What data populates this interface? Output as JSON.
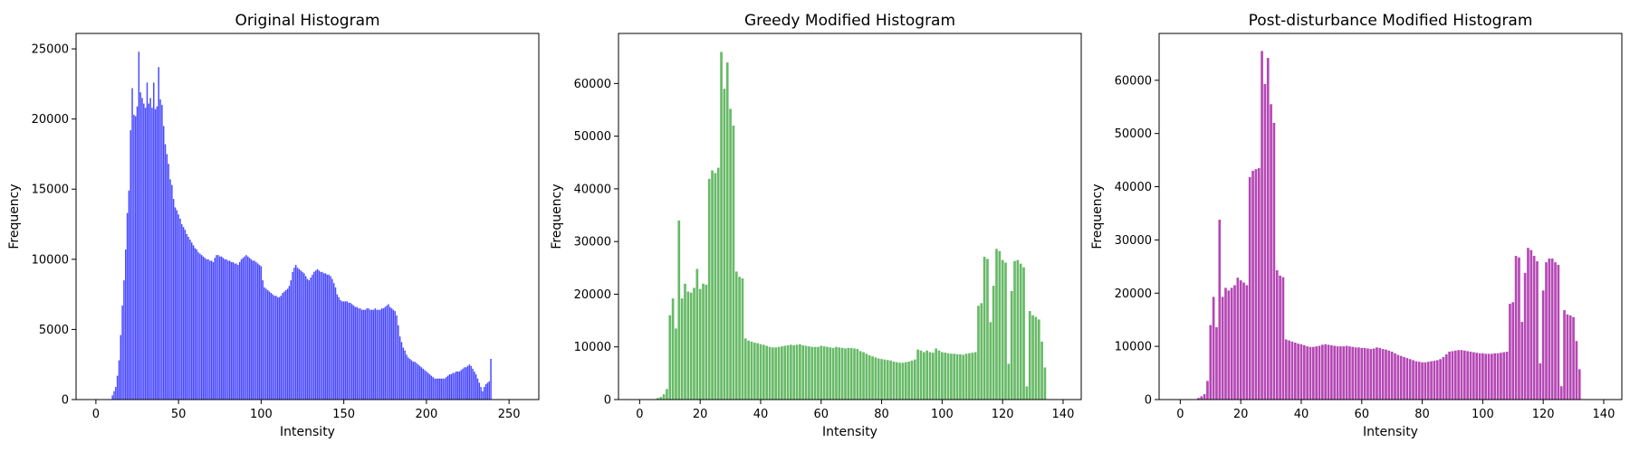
{
  "chart_data": [
    {
      "type": "bar",
      "title": "Original Histogram",
      "xlabel": "Intensity",
      "ylabel": "Frequency",
      "color": "#0000ff",
      "xlim": [
        -12,
        268
      ],
      "ylim": [
        0,
        26100
      ],
      "xticks": [
        0,
        50,
        100,
        150,
        200,
        250
      ],
      "yticks": [
        0,
        5000,
        10000,
        15000,
        20000,
        25000
      ],
      "bar_width": 0.8,
      "x_start": 0,
      "grid": false,
      "values": [
        0,
        0,
        0,
        0,
        0,
        0,
        0,
        0,
        0,
        0,
        300,
        600,
        900,
        1700,
        2800,
        4600,
        6700,
        8500,
        10700,
        13300,
        14900,
        19200,
        22200,
        20300,
        20200,
        20900,
        24800,
        21900,
        21500,
        21100,
        20800,
        22600,
        21100,
        21500,
        20800,
        22600,
        20700,
        20900,
        23700,
        21400,
        21000,
        19500,
        18200,
        17500,
        16800,
        15700,
        15300,
        14300,
        13700,
        13500,
        13200,
        12900,
        12500,
        12300,
        12100,
        11800,
        11600,
        11400,
        11200,
        11000,
        10800,
        10700,
        10500,
        10400,
        10300,
        10200,
        10100,
        10000,
        10000,
        9900,
        9900,
        9800,
        10100,
        10300,
        10300,
        10200,
        10200,
        10100,
        10000,
        10000,
        9900,
        9900,
        9800,
        9800,
        9700,
        9700,
        9600,
        9800,
        10000,
        10100,
        10200,
        10300,
        10200,
        10100,
        10000,
        9900,
        9900,
        9800,
        9700,
        9600,
        9500,
        8500,
        8000,
        7900,
        7800,
        7700,
        7600,
        7500,
        7400,
        7400,
        7300,
        7300,
        7400,
        7600,
        7700,
        7800,
        7900,
        8100,
        8500,
        9100,
        9400,
        9600,
        9400,
        9300,
        9200,
        9100,
        9000,
        8800,
        8600,
        8500,
        8700,
        8900,
        9100,
        9200,
        9300,
        9200,
        9100,
        9100,
        9000,
        9000,
        8900,
        8900,
        8800,
        8600,
        8300,
        8000,
        7500,
        7300,
        7100,
        7000,
        7000,
        7000,
        7000,
        6900,
        6900,
        6800,
        6700,
        6600,
        6600,
        6500,
        6500,
        6400,
        6400,
        6400,
        6500,
        6500,
        6400,
        6400,
        6400,
        6500,
        6400,
        6400,
        6400,
        6500,
        6500,
        6600,
        6700,
        6800,
        6600,
        6500,
        6400,
        6300,
        6000,
        5300,
        4500,
        4100,
        3700,
        3500,
        3200,
        3000,
        2900,
        2800,
        2700,
        2700,
        2600,
        2500,
        2400,
        2300,
        2200,
        2100,
        2000,
        1900,
        1800,
        1700,
        1600,
        1500,
        1500,
        1500,
        1500,
        1500,
        1500,
        1500,
        1600,
        1700,
        1800,
        1800,
        1900,
        1900,
        2000,
        2000,
        2000,
        2100,
        2200,
        2300,
        2300,
        2400,
        2500,
        2400,
        2200,
        2000,
        1800,
        1500,
        1200,
        900,
        600,
        900,
        1100,
        1200,
        1300,
        2900
      ]
    },
    {
      "type": "bar",
      "title": "Greedy Modified Histogram",
      "xlabel": "Intensity",
      "ylabel": "Frequency",
      "color": "#2ca02c",
      "xlim": [
        -7,
        146
      ],
      "ylim": [
        0,
        69500
      ],
      "xticks": [
        0,
        20,
        40,
        60,
        80,
        100,
        120,
        140
      ],
      "yticks": [
        0,
        10000,
        20000,
        30000,
        40000,
        50000,
        60000
      ],
      "bar_width": 0.8,
      "x_start": 0,
      "grid": false,
      "values": [
        0,
        0,
        0,
        0,
        0,
        0,
        300,
        500,
        1000,
        2000,
        16000,
        19200,
        13500,
        34000,
        19200,
        22000,
        20500,
        20300,
        21200,
        24800,
        21000,
        22000,
        21800,
        41900,
        43500,
        43000,
        44000,
        66000,
        59000,
        64000,
        55200,
        52000,
        24300,
        23300,
        23000,
        11600,
        11200,
        11000,
        10800,
        10700,
        10500,
        10400,
        10200,
        10000,
        9900,
        9900,
        10000,
        10100,
        10200,
        10300,
        10400,
        10300,
        10400,
        10500,
        10300,
        10200,
        10100,
        10000,
        10000,
        10000,
        10200,
        10100,
        10000,
        9900,
        9800,
        10000,
        9900,
        9800,
        9700,
        9800,
        9800,
        9700,
        9600,
        9200,
        9000,
        8700,
        8400,
        8200,
        8000,
        7800,
        7700,
        7600,
        7500,
        7400,
        7200,
        7100,
        7000,
        7000,
        7100,
        7200,
        7400,
        7600,
        9500,
        9300,
        9000,
        9300,
        9000,
        8900,
        9700,
        9300,
        9000,
        8900,
        8800,
        8700,
        8700,
        8600,
        8600,
        8500,
        8700,
        8800,
        8900,
        9000,
        17800,
        18300,
        27100,
        26700,
        14700,
        21600,
        28600,
        28200,
        26500,
        26000,
        6800,
        20600,
        26300,
        26500,
        25800,
        25100,
        2500,
        16800,
        16000,
        15700,
        15200,
        11000,
        6100
      ]
    },
    {
      "type": "bar",
      "title": "Post-disturbance Modified Histogram",
      "xlabel": "Intensity",
      "ylabel": "Frequency",
      "color": "#990099",
      "xlim": [
        -7,
        146
      ],
      "ylim": [
        0,
        68800
      ],
      "xticks": [
        0,
        20,
        40,
        60,
        80,
        100,
        120,
        140
      ],
      "yticks": [
        0,
        10000,
        20000,
        30000,
        40000,
        50000,
        60000
      ],
      "bar_width": 0.8,
      "x_start": 0,
      "grid": false,
      "values": [
        0,
        0,
        0,
        0,
        0,
        0,
        300,
        600,
        1000,
        3500,
        14000,
        19300,
        13600,
        33800,
        19300,
        21000,
        20500,
        21000,
        21500,
        22900,
        22400,
        22000,
        21500,
        41800,
        43000,
        43300,
        43500,
        65500,
        59300,
        64200,
        55500,
        52000,
        24300,
        23300,
        23000,
        11300,
        11100,
        10900,
        10700,
        10500,
        10400,
        10200,
        10000,
        9900,
        9900,
        10000,
        10100,
        10300,
        10400,
        10300,
        10200,
        10100,
        10000,
        10000,
        10000,
        10100,
        10000,
        9900,
        9800,
        9800,
        9700,
        9700,
        9600,
        9500,
        9600,
        9800,
        9700,
        9500,
        9400,
        9200,
        9000,
        8700,
        8400,
        8200,
        8000,
        7800,
        7600,
        7400,
        7200,
        7100,
        7000,
        7000,
        7100,
        7200,
        7300,
        7400,
        7600,
        8000,
        8500,
        9000,
        9100,
        9200,
        9300,
        9300,
        9200,
        9100,
        9000,
        8900,
        8800,
        8700,
        8700,
        8600,
        8600,
        8600,
        8700,
        8700,
        8800,
        8900,
        9000,
        18000,
        18300,
        27000,
        26700,
        14600,
        23800,
        28500,
        28100,
        27000,
        26000,
        6800,
        20500,
        25800,
        26500,
        26500,
        25800,
        25300,
        2500,
        16800,
        16000,
        15800,
        15500,
        11000,
        5700
      ]
    }
  ]
}
